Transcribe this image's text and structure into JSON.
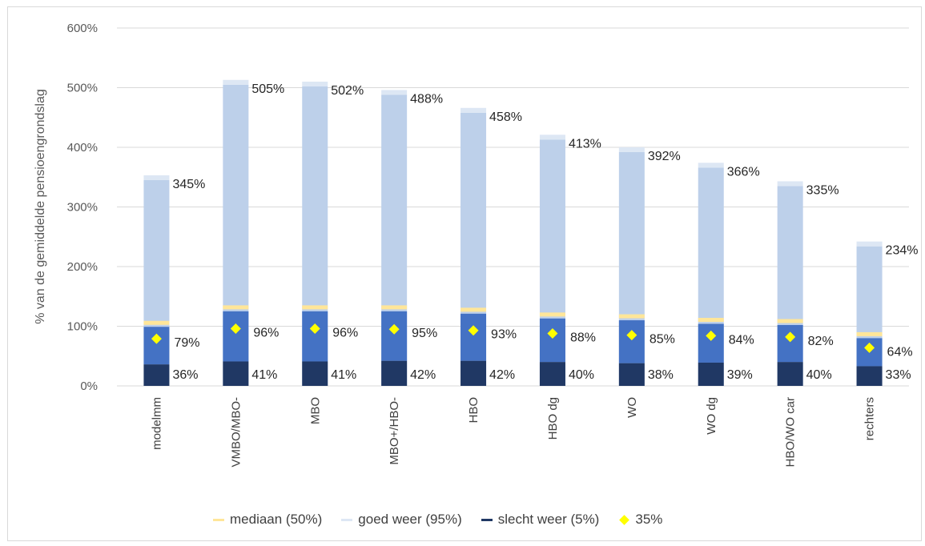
{
  "chart_data": {
    "type": "bar",
    "ylabel": "% van de gemiddelde pensioengrondslag",
    "ylim": [
      0,
      600
    ],
    "yticks": [
      "0%",
      "100%",
      "200%",
      "300%",
      "400%",
      "500%",
      "600%"
    ],
    "categories": [
      "modelmm",
      "VMBO/MBO-",
      "MBO",
      "MBO+/HBO-",
      "HBO",
      "HBO dg",
      "WO",
      "WO dg",
      "HBO/WO car",
      "rechters"
    ],
    "series": [
      {
        "name": "mediaan (50%)",
        "values": [
          105,
          131,
          131,
          131,
          127,
          119,
          116,
          110,
          108,
          86
        ]
      },
      {
        "name": "goed weer (95%)",
        "values": [
          345,
          505,
          502,
          488,
          458,
          413,
          392,
          366,
          335,
          234
        ]
      },
      {
        "name": "slecht weer (5%)",
        "values": [
          36,
          41,
          41,
          42,
          42,
          40,
          38,
          39,
          40,
          33
        ]
      },
      {
        "name": "35%",
        "values": [
          79,
          96,
          96,
          95,
          93,
          88,
          85,
          84,
          82,
          64
        ]
      }
    ],
    "data_labels": {
      "goed": [
        "345%",
        "505%",
        "502%",
        "488%",
        "458%",
        "413%",
        "392%",
        "366%",
        "335%",
        "234%"
      ],
      "point": [
        "79%",
        "96%",
        "96%",
        "95%",
        "93%",
        "88%",
        "85%",
        "84%",
        "82%",
        "64%"
      ],
      "slecht": [
        "36%",
        "41%",
        "41%",
        "42%",
        "42%",
        "40%",
        "38%",
        "39%",
        "40%",
        "33%"
      ]
    },
    "grid": true,
    "legend_position": "bottom"
  },
  "colors": {
    "goed": "#bdd0ea",
    "goed_cap": "#dde7f4",
    "middle": "#4472c4",
    "slecht": "#203864",
    "median": "#ffe699",
    "point": "#ffff00",
    "grid": "#d9d9d9"
  },
  "legend": {
    "mediaan": "mediaan (50%)",
    "goed": "goed weer (95%)",
    "slecht": "slecht weer (5%)",
    "point": "35%"
  }
}
